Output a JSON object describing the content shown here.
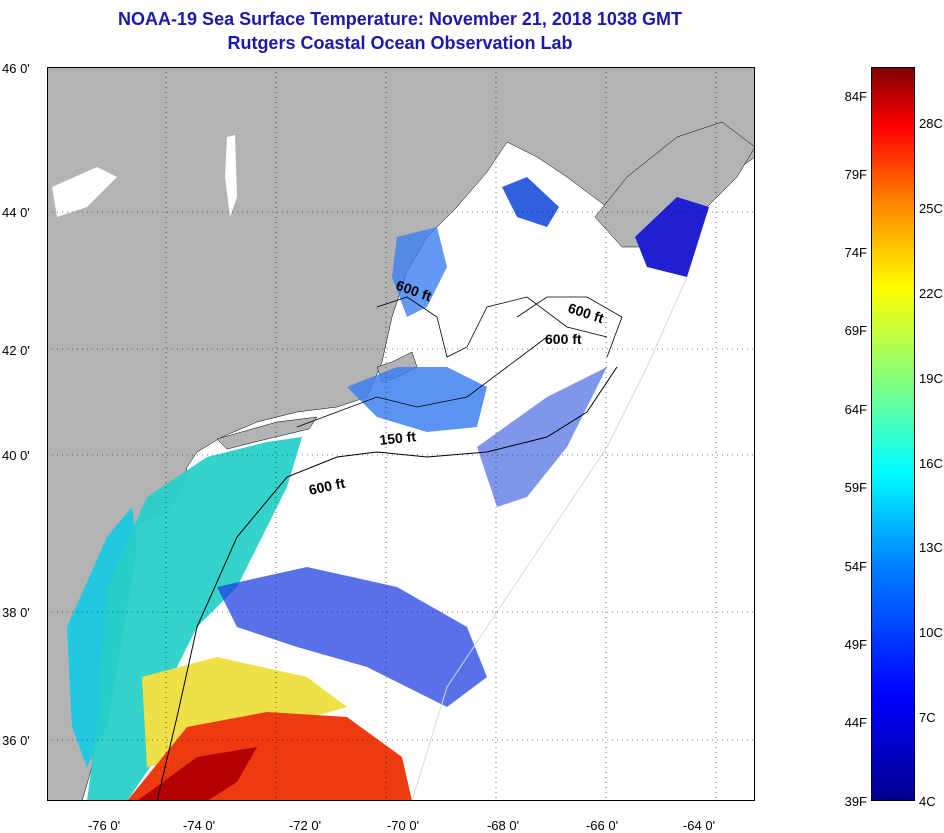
{
  "title": {
    "line1": "NOAA-19 Sea Surface Temperature:  November 21, 2018 1038 GMT",
    "line2": "Rutgers Coastal Ocean Observation Lab"
  },
  "map": {
    "lat_labels": [
      "46 0'",
      "44 0'",
      "42 0'",
      "40 0'",
      "38 0'",
      "36 0'"
    ],
    "lon_labels": [
      "-76 0'",
      "-74 0'",
      "-72 0'",
      "-70 0'",
      "-68 0'",
      "-66 0'",
      "-64 0'"
    ],
    "contour_labels": {
      "gulf_600": "600 ft",
      "ne_600a": "600 ft",
      "ne_600b": "600 ft",
      "shelf_150": "150 ft",
      "south_600": "600 ft"
    },
    "colors": {
      "land": "#b3b3b3",
      "no_data": "#ffffff",
      "grid": "#000000"
    }
  },
  "colorbar": {
    "fahrenheit": [
      "84F",
      "79F",
      "74F",
      "69F",
      "64F",
      "59F",
      "54F",
      "49F",
      "44F",
      "39F"
    ],
    "celsius": [
      "28C",
      "25C",
      "22C",
      "19C",
      "16C",
      "13C",
      "10C",
      "7C",
      "4C"
    ]
  }
}
